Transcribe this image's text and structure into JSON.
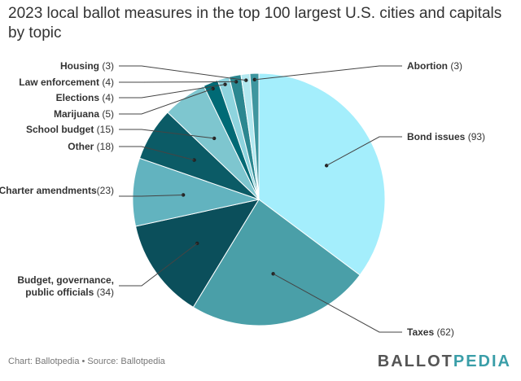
{
  "chart_data": {
    "type": "pie",
    "title": "2023 local ballot measures in the top 100 largest U.S. cities and capitals by topic",
    "slices": [
      {
        "name": "Bond issues",
        "value": 93,
        "color": "#a4eefc"
      },
      {
        "name": "Taxes",
        "value": 62,
        "color": "#4a9fa8"
      },
      {
        "name": "Budget, governance, public officials",
        "value": 34,
        "color": "#0b4f5b"
      },
      {
        "name": "Charter amendments",
        "value": 23,
        "color": "#62b3bf"
      },
      {
        "name": "Other",
        "value": 18,
        "color": "#0b5b66"
      },
      {
        "name": "School budget",
        "value": 15,
        "color": "#7ec6cf"
      },
      {
        "name": "Marijuana",
        "value": 5,
        "color": "#006a75"
      },
      {
        "name": "Elections",
        "value": 4,
        "color": "#8ed4de"
      },
      {
        "name": "Law enforcement",
        "value": 4,
        "color": "#2b8790"
      },
      {
        "name": "Housing",
        "value": 3,
        "color": "#b2e8f0"
      },
      {
        "name": "Abortion",
        "value": 3,
        "color": "#3e969f"
      }
    ],
    "legend": "none"
  },
  "footer": {
    "credit": "Chart: Ballotpedia • Source: Ballotpedia",
    "logo_main": "BALLOT",
    "logo_accent": "PEDIA"
  }
}
